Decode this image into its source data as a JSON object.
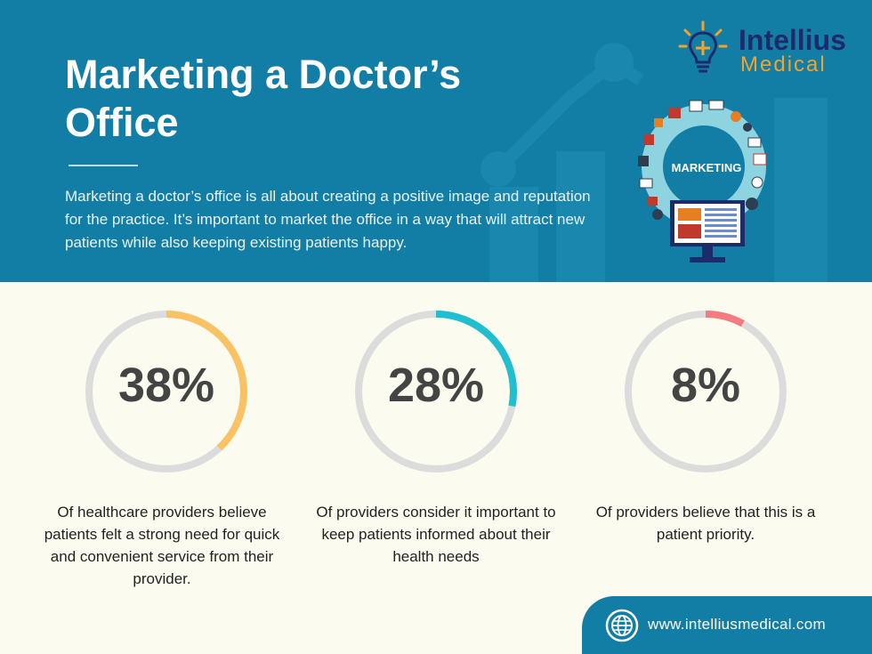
{
  "header": {
    "title": "Marketing a Doctor’s Office",
    "intro": "Marketing a doctor’s office is all about creating a positive image and reputation for the practice. It’s important to market the office in a way that will attract new patients while also keeping existing patients happy."
  },
  "logo": {
    "name": "Intellius",
    "sub": "Medical"
  },
  "illustration": {
    "label": "MARKETING"
  },
  "stats": [
    {
      "percent": 38,
      "label": "38%",
      "color": "#f9c365",
      "caption": "Of healthcare providers believe patients felt a strong need for quick and convenient service from their provider."
    },
    {
      "percent": 28,
      "label": "28%",
      "color": "#1fbfcf",
      "caption": "Of providers consider it important to keep patients informed about their health needs"
    },
    {
      "percent": 8,
      "label": "8%",
      "color": "#f47c80",
      "caption": "Of providers believe that this is a patient priority."
    }
  ],
  "footer": {
    "url": "www.intelliusmedical.com"
  },
  "colors": {
    "header_bg": "#137ea5",
    "page_bg": "#fbfbf0",
    "ring_track": "#dcdcdc",
    "logo_name": "#1d2b6b",
    "logo_sub": "#f3a22b"
  }
}
